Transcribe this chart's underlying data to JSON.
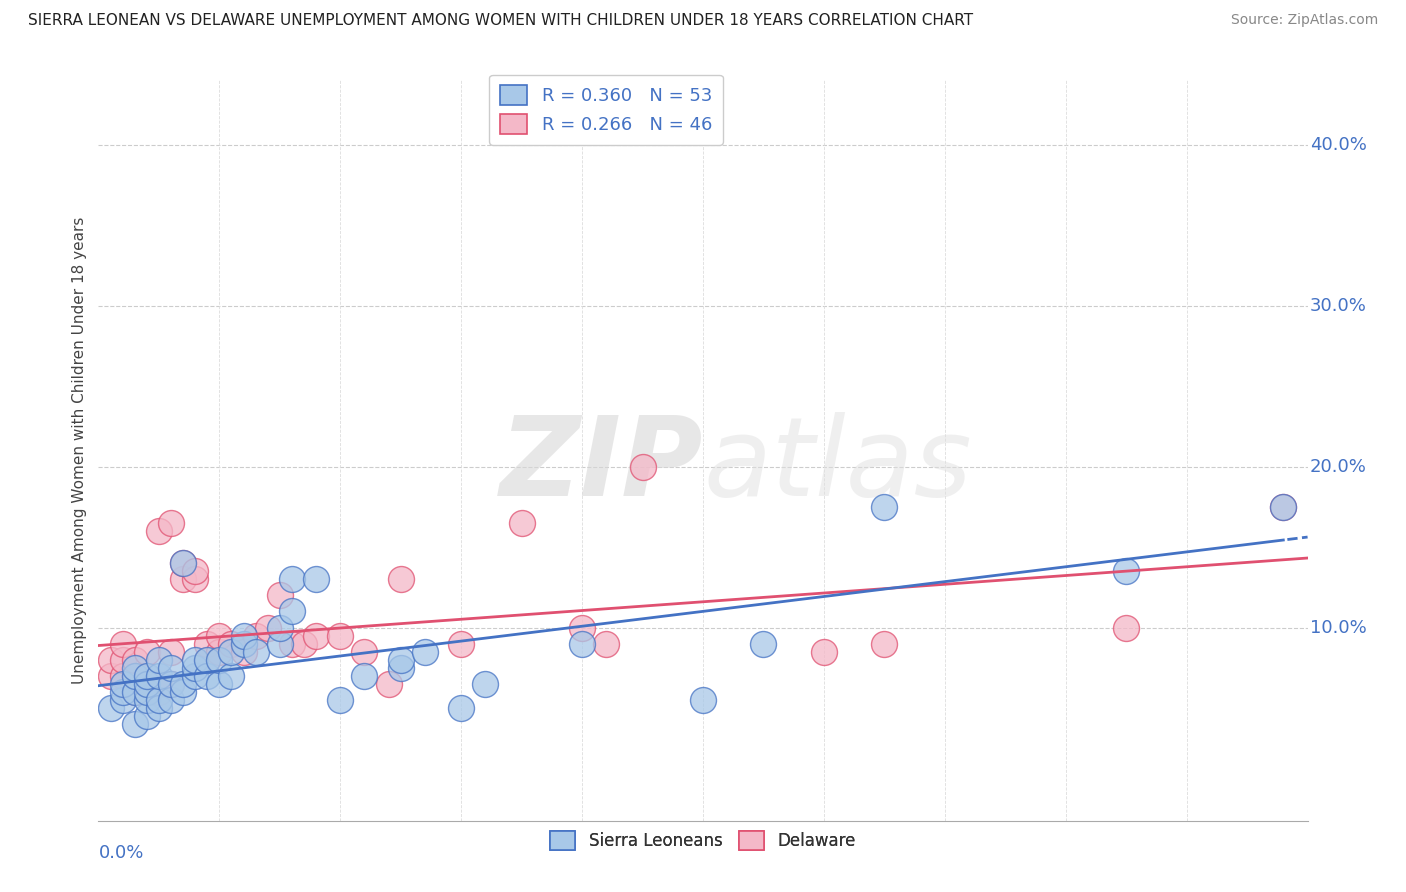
{
  "title": "SIERRA LEONEAN VS DELAWARE UNEMPLOYMENT AMONG WOMEN WITH CHILDREN UNDER 18 YEARS CORRELATION CHART",
  "source": "Source: ZipAtlas.com",
  "ylabel": "Unemployment Among Women with Children Under 18 years",
  "xlim": [
    0.0,
    0.1
  ],
  "ylim": [
    -0.02,
    0.44
  ],
  "ytick_vals": [
    0.0,
    0.1,
    0.2,
    0.3,
    0.4
  ],
  "ytick_labels": [
    "",
    "10.0%",
    "20.0%",
    "30.0%",
    "40.0%"
  ],
  "legend_blue_r": "0.360",
  "legend_blue_n": "53",
  "legend_pink_r": "0.266",
  "legend_pink_n": "46",
  "legend_label_blue": "Sierra Leoneans",
  "legend_label_pink": "Delaware",
  "blue_color": "#a8c8e8",
  "pink_color": "#f4b8c8",
  "trendline_blue": "#4472c4",
  "trendline_pink": "#e05070",
  "background_color": "#ffffff",
  "blue_scatter_x": [
    0.001,
    0.002,
    0.002,
    0.002,
    0.003,
    0.003,
    0.003,
    0.003,
    0.004,
    0.004,
    0.004,
    0.004,
    0.004,
    0.005,
    0.005,
    0.005,
    0.005,
    0.006,
    0.006,
    0.006,
    0.007,
    0.007,
    0.007,
    0.008,
    0.008,
    0.008,
    0.009,
    0.009,
    0.01,
    0.01,
    0.011,
    0.011,
    0.012,
    0.012,
    0.013,
    0.015,
    0.015,
    0.016,
    0.016,
    0.018,
    0.02,
    0.022,
    0.025,
    0.025,
    0.027,
    0.03,
    0.032,
    0.04,
    0.05,
    0.055,
    0.065,
    0.085,
    0.098
  ],
  "blue_scatter_y": [
    0.05,
    0.055,
    0.06,
    0.065,
    0.04,
    0.06,
    0.07,
    0.075,
    0.045,
    0.055,
    0.06,
    0.065,
    0.07,
    0.05,
    0.055,
    0.07,
    0.08,
    0.055,
    0.065,
    0.075,
    0.06,
    0.065,
    0.14,
    0.07,
    0.075,
    0.08,
    0.07,
    0.08,
    0.065,
    0.08,
    0.07,
    0.085,
    0.09,
    0.095,
    0.085,
    0.09,
    0.1,
    0.11,
    0.13,
    0.13,
    0.055,
    0.07,
    0.075,
    0.08,
    0.085,
    0.05,
    0.065,
    0.09,
    0.055,
    0.09,
    0.175,
    0.135,
    0.175
  ],
  "pink_scatter_x": [
    0.001,
    0.001,
    0.002,
    0.002,
    0.002,
    0.003,
    0.003,
    0.003,
    0.004,
    0.004,
    0.004,
    0.005,
    0.005,
    0.005,
    0.006,
    0.006,
    0.006,
    0.007,
    0.007,
    0.008,
    0.008,
    0.009,
    0.009,
    0.01,
    0.01,
    0.011,
    0.012,
    0.013,
    0.014,
    0.015,
    0.016,
    0.017,
    0.018,
    0.02,
    0.022,
    0.024,
    0.025,
    0.03,
    0.035,
    0.04,
    0.042,
    0.045,
    0.06,
    0.065,
    0.085,
    0.098
  ],
  "pink_scatter_y": [
    0.07,
    0.08,
    0.07,
    0.08,
    0.09,
    0.06,
    0.07,
    0.08,
    0.065,
    0.07,
    0.085,
    0.06,
    0.065,
    0.16,
    0.065,
    0.085,
    0.165,
    0.13,
    0.14,
    0.13,
    0.135,
    0.08,
    0.09,
    0.085,
    0.095,
    0.09,
    0.085,
    0.095,
    0.1,
    0.12,
    0.09,
    0.09,
    0.095,
    0.095,
    0.085,
    0.065,
    0.13,
    0.09,
    0.165,
    0.1,
    0.09,
    0.2,
    0.085,
    0.09,
    0.1,
    0.175
  ]
}
